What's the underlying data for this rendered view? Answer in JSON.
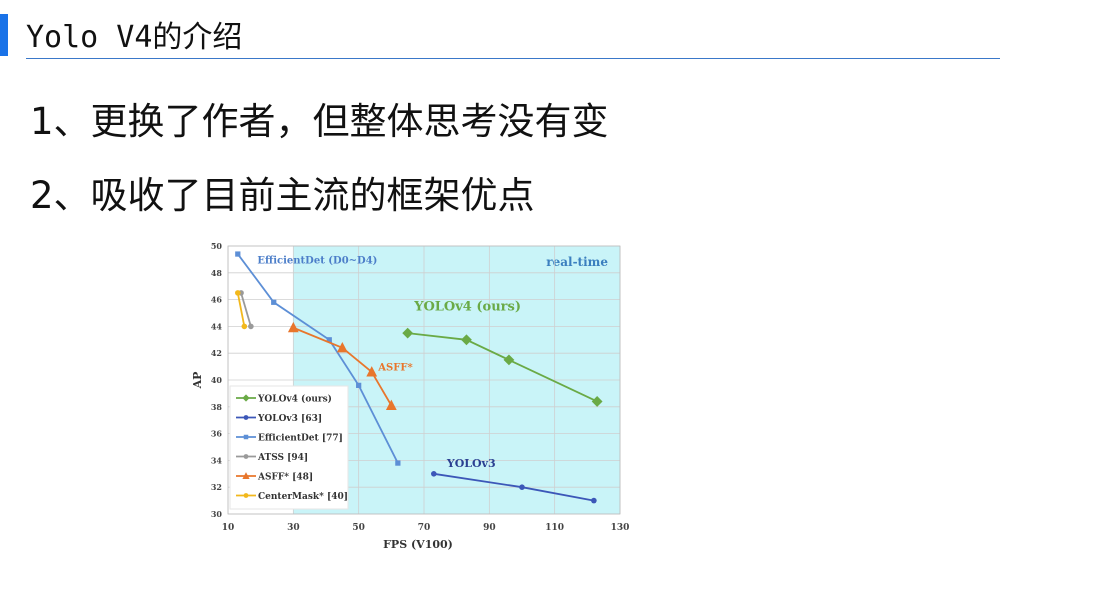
{
  "slide": {
    "title": "Yolo V4的介绍",
    "bullets": [
      "1、更换了作者，但整体思考没有变",
      "2、吸收了目前主流的框架优点"
    ]
  },
  "chart_data": {
    "type": "line",
    "xlabel": "FPS (V100)",
    "ylabel": "AP",
    "xlim": [
      10,
      130
    ],
    "ylim": [
      30,
      50
    ],
    "xticks": [
      10,
      30,
      50,
      70,
      90,
      110,
      130
    ],
    "yticks": [
      30,
      32,
      34,
      36,
      38,
      40,
      42,
      44,
      46,
      48,
      50
    ],
    "grid": true,
    "shaded_region": {
      "label": "real-time",
      "x_from": 30,
      "x_to": 130,
      "color": "#c9f4f8"
    },
    "legend_position": "lower-left",
    "series": [
      {
        "name": "YOLOv4 (ours)",
        "label": "YOLOv4 (ours)",
        "color": "#6aaa46",
        "marker": "diamond",
        "x": [
          65,
          83,
          96,
          123
        ],
        "y": [
          43.5,
          43.0,
          41.5,
          38.4
        ]
      },
      {
        "name": "YOLOv3 [63]",
        "label": "YOLOv3",
        "color": "#3c57b8",
        "marker": "circle",
        "x": [
          73,
          100,
          122
        ],
        "y": [
          33.0,
          32.0,
          31.0
        ]
      },
      {
        "name": "EfficientDet [77]",
        "label": "EfficientDet (D0~D4)",
        "color": "#5d8fd6",
        "marker": "square",
        "x": [
          13,
          24,
          41,
          50,
          62
        ],
        "y": [
          49.4,
          45.8,
          43.0,
          39.6,
          33.8
        ]
      },
      {
        "name": "ATSS [94]",
        "label": "",
        "color": "#9a9a9a",
        "marker": "circle",
        "x": [
          14,
          17
        ],
        "y": [
          46.5,
          44.0
        ]
      },
      {
        "name": "ASFF* [48]",
        "label": "ASFF*",
        "color": "#e8762c",
        "marker": "triangle",
        "x": [
          30,
          45,
          54,
          60
        ],
        "y": [
          43.9,
          42.4,
          40.6,
          38.1
        ]
      },
      {
        "name": "CenterMask* [40]",
        "label": "",
        "color": "#f2b81c",
        "marker": "circle",
        "x": [
          13,
          15
        ],
        "y": [
          46.5,
          44.0
        ]
      }
    ]
  }
}
